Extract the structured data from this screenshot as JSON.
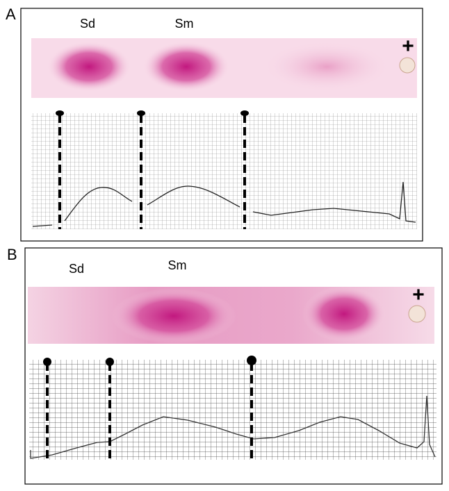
{
  "panels": [
    {
      "label": "A",
      "lanes": [
        "Sd",
        "Sm"
      ],
      "anode": "+"
    },
    {
      "label": "B",
      "lanes": [
        "Sd",
        "Sm"
      ],
      "anode": "+"
    }
  ]
}
